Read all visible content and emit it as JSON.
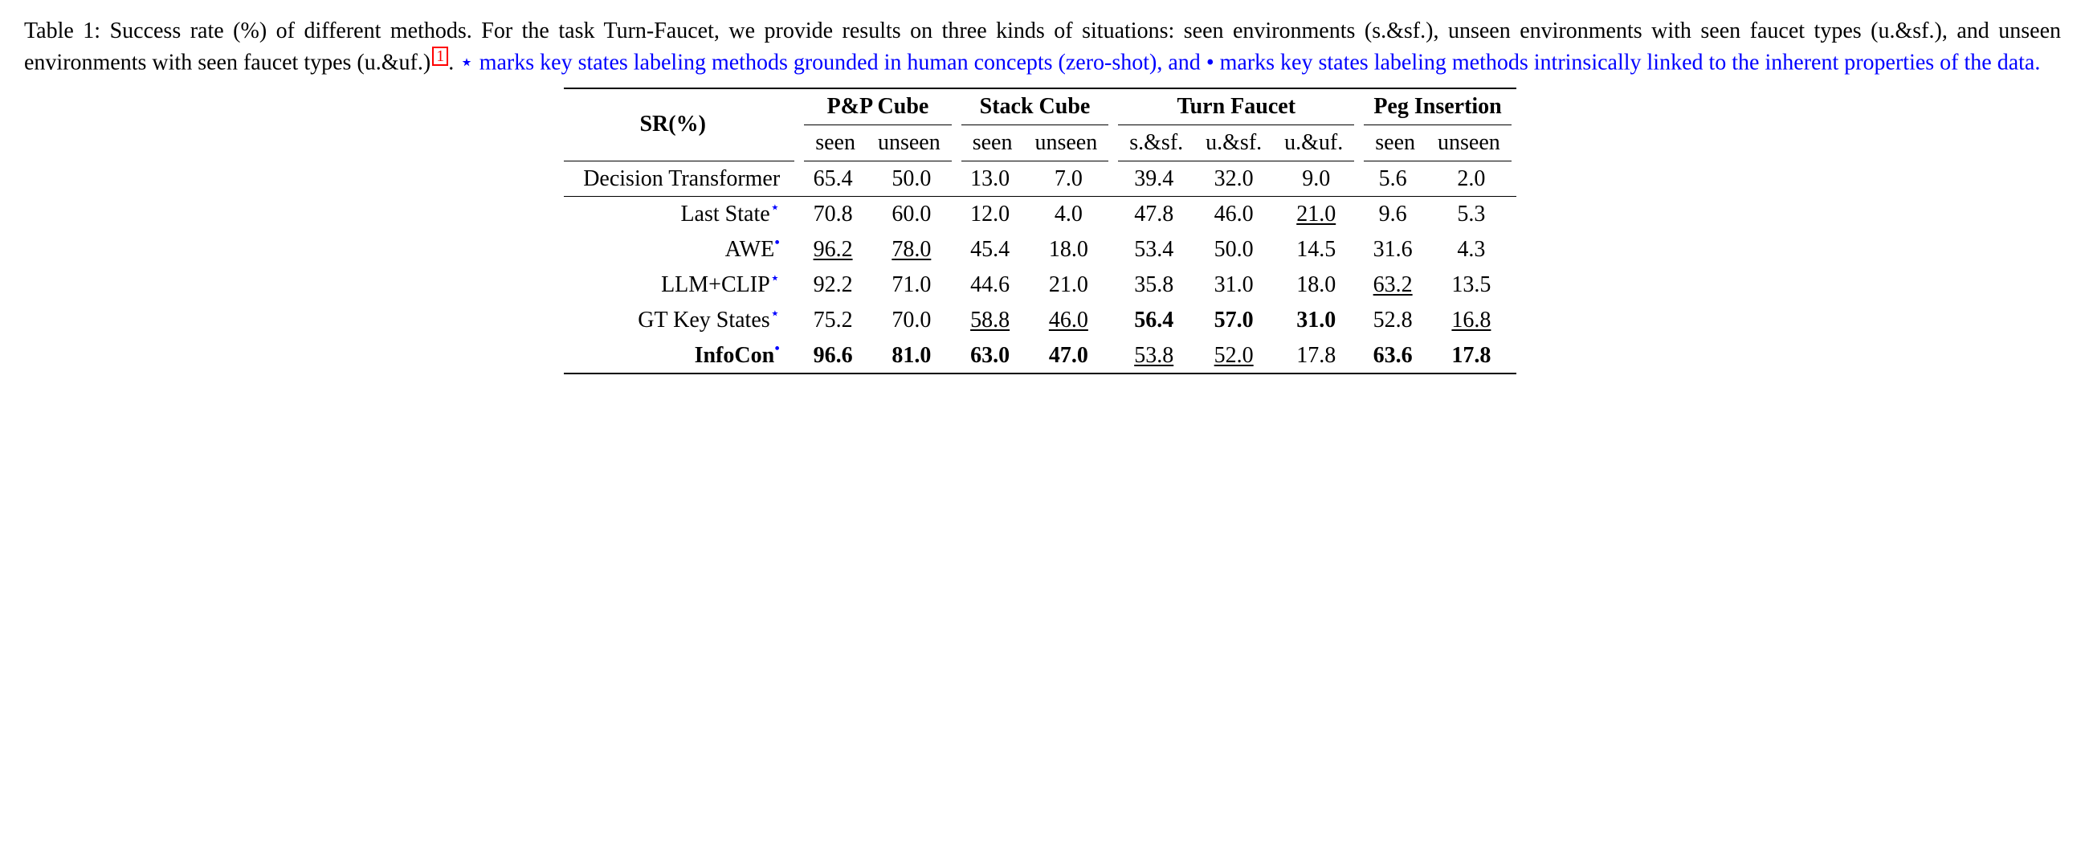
{
  "caption": {
    "black_prefix": "Table 1:  Success rate (%) of different methods.  For the task Turn-Faucet, we provide results on three kinds of situations: seen environments (s.&sf.), unseen environments with seen faucet types (u.&sf.), and unseen environments with seen faucet types (u.&uf.)",
    "footnote_ref": "1",
    "black_period": ".  ",
    "blue_star": "⋆",
    "blue_text1": " marks key states labeling methods grounded in human concepts (zero-shot), and ",
    "blue_bullet": "•",
    "blue_text2": " marks key states labeling methods intrinsically linked to the inherent properties of the data.",
    "fontsize": 28,
    "blue_color": "#0000ff",
    "red_color": "#ff0000"
  },
  "table": {
    "header": {
      "sr": "SR(%)",
      "groups": [
        {
          "label": "P&P Cube",
          "subs": [
            "seen",
            "unseen"
          ]
        },
        {
          "label": "Stack Cube",
          "subs": [
            "seen",
            "unseen"
          ]
        },
        {
          "label": "Turn Faucet",
          "subs": [
            "s.&sf.",
            "u.&sf.",
            "u.&uf."
          ]
        },
        {
          "label": "Peg Insertion",
          "subs": [
            "seen",
            "unseen"
          ]
        }
      ]
    },
    "rows": [
      {
        "name": "Decision Transformer",
        "marker": "",
        "bold_name": false,
        "cells": [
          {
            "v": "65.4"
          },
          {
            "v": "50.0"
          },
          {
            "v": "13.0"
          },
          {
            "v": "7.0"
          },
          {
            "v": "39.4"
          },
          {
            "v": "32.0"
          },
          {
            "v": "9.0"
          },
          {
            "v": "5.6"
          },
          {
            "v": "2.0"
          }
        ],
        "section_end": true
      },
      {
        "name": "Last State",
        "marker": "star",
        "cells": [
          {
            "v": "70.8"
          },
          {
            "v": "60.0"
          },
          {
            "v": "12.0"
          },
          {
            "v": "4.0"
          },
          {
            "v": "47.8"
          },
          {
            "v": "46.0"
          },
          {
            "v": "21.0",
            "u": true
          },
          {
            "v": "9.6"
          },
          {
            "v": "5.3"
          }
        ]
      },
      {
        "name": "AWE",
        "marker": "bullet",
        "cells": [
          {
            "v": "96.2",
            "u": true
          },
          {
            "v": "78.0",
            "u": true
          },
          {
            "v": "45.4"
          },
          {
            "v": "18.0"
          },
          {
            "v": "53.4"
          },
          {
            "v": "50.0"
          },
          {
            "v": "14.5"
          },
          {
            "v": "31.6"
          },
          {
            "v": "4.3"
          }
        ]
      },
      {
        "name": "LLM+CLIP",
        "marker": "star",
        "cells": [
          {
            "v": "92.2"
          },
          {
            "v": "71.0"
          },
          {
            "v": "44.6"
          },
          {
            "v": "21.0"
          },
          {
            "v": "35.8"
          },
          {
            "v": "31.0"
          },
          {
            "v": "18.0"
          },
          {
            "v": "63.2",
            "u": true
          },
          {
            "v": "13.5"
          }
        ]
      },
      {
        "name": "GT Key States",
        "marker": "star",
        "cells": [
          {
            "v": "75.2"
          },
          {
            "v": "70.0"
          },
          {
            "v": "58.8",
            "u": true
          },
          {
            "v": "46.0",
            "u": true
          },
          {
            "v": "56.4",
            "b": true
          },
          {
            "v": "57.0",
            "b": true
          },
          {
            "v": "31.0",
            "b": true
          },
          {
            "v": "52.8"
          },
          {
            "v": "16.8",
            "u": true
          }
        ]
      },
      {
        "name": "InfoCon",
        "marker": "bullet",
        "bold_name": true,
        "cells": [
          {
            "v": "96.6",
            "b": true
          },
          {
            "v": "81.0",
            "b": true
          },
          {
            "v": "63.0",
            "b": true
          },
          {
            "v": "47.0",
            "b": true
          },
          {
            "v": "53.8",
            "u": true
          },
          {
            "v": "52.0",
            "u": true
          },
          {
            "v": "17.8"
          },
          {
            "v": "63.6",
            "b": true
          },
          {
            "v": "17.8",
            "b": true
          }
        ]
      }
    ],
    "styling": {
      "toprule_width": 2.5,
      "midrule_width": 1.5,
      "cmidrule_width": 1.2,
      "bottomrule_width": 2.5,
      "text_color": "#000000",
      "background_color": "#ffffff",
      "font_family": "Times New Roman",
      "fontsize": 28
    }
  }
}
